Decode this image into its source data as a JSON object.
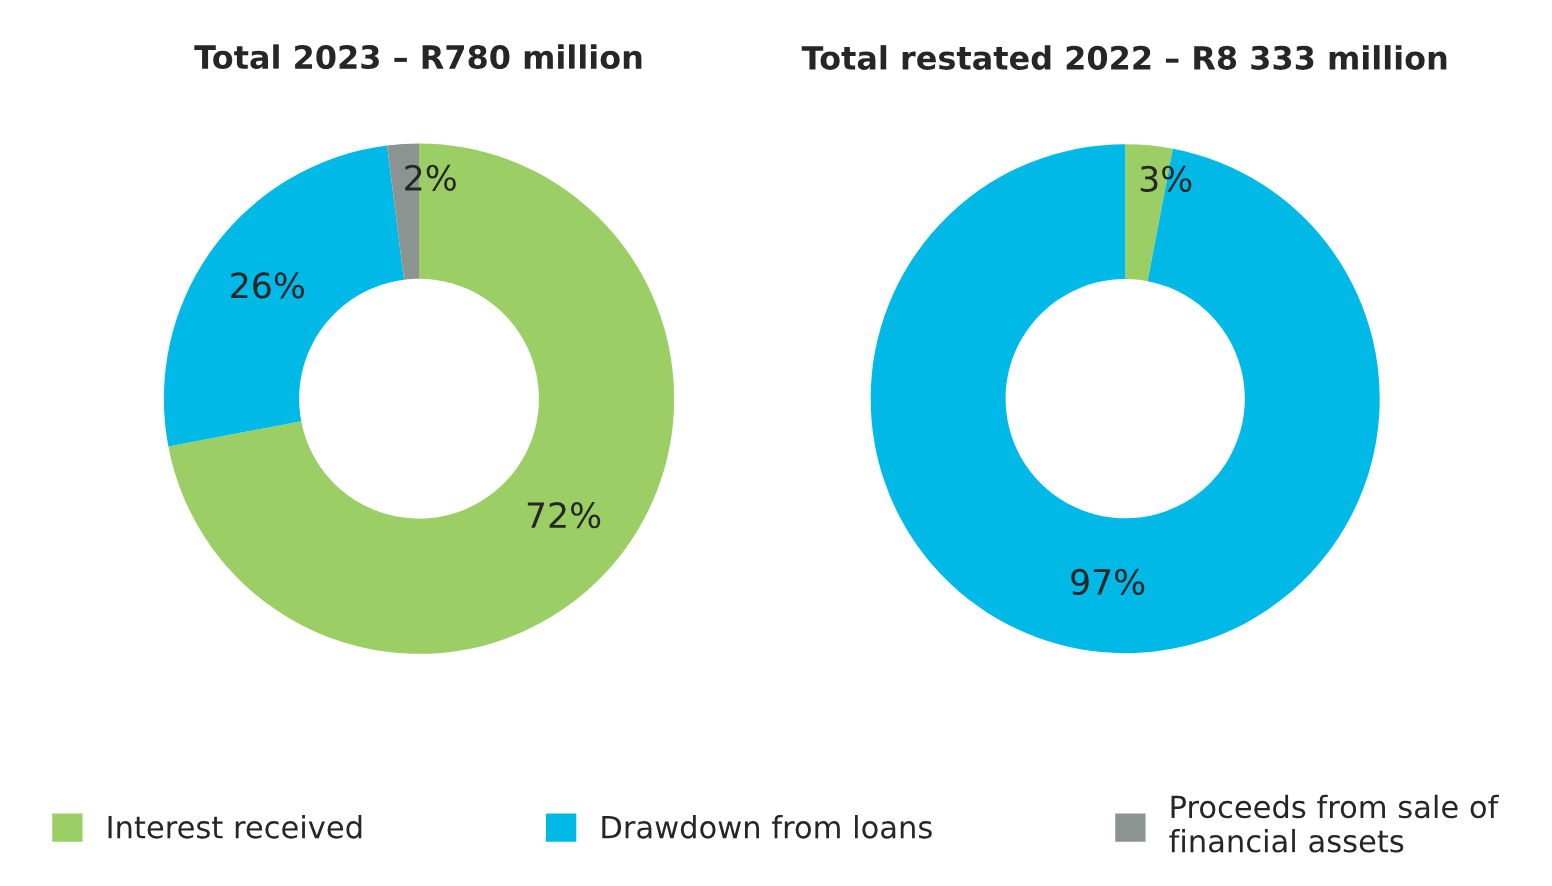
{
  "chart_data": [
    {
      "type": "donut",
      "title": "Total 2023 – R780 million",
      "categories": [
        "Interest received",
        "Drawdown from loans",
        "Proceeds from sale of financial assets"
      ],
      "values": [
        72,
        26,
        2
      ],
      "value_labels": [
        "72%",
        "26%",
        "2%"
      ],
      "colors": [
        "#9bcf65",
        "#00b9e6",
        "#8c9491"
      ],
      "legend": "bottom"
    },
    {
      "type": "donut",
      "title": "Total restated 2022 – R8 333 million",
      "categories": [
        null,
        null
      ],
      "values": [
        3,
        97
      ],
      "value_labels": [
        "3%",
        "97%"
      ],
      "colors": [
        "#9bcf65",
        "#00b9e6"
      ]
    }
  ]
}
